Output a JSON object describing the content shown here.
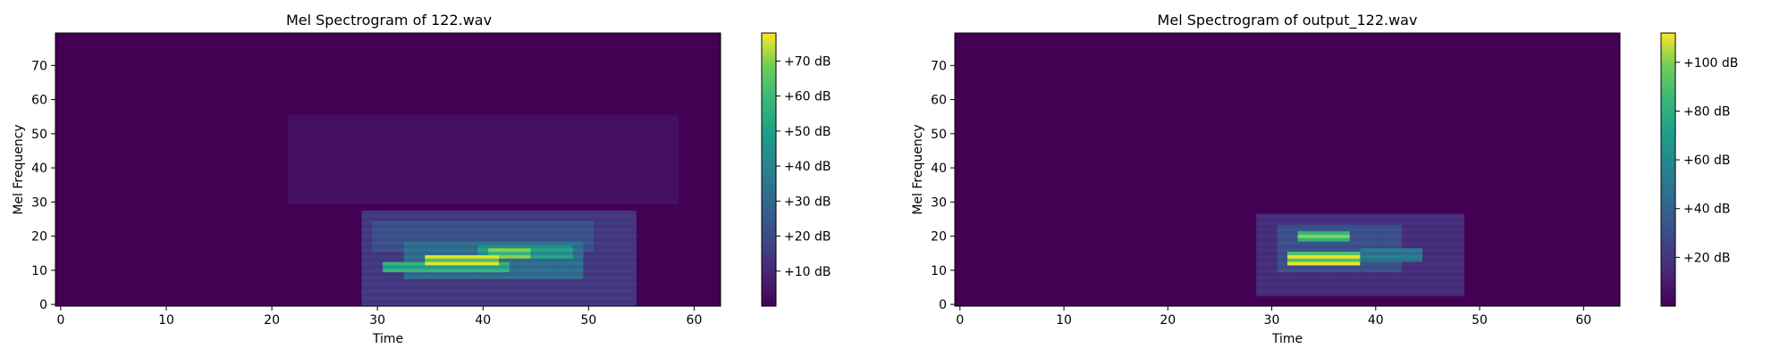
{
  "colors": {
    "viridis_low": "#440154",
    "viridis_mid": "#21918c",
    "viridis_high": "#fde725",
    "axis": "#000000",
    "background": "#ffffff"
  },
  "chart_data": [
    {
      "type": "heatmap",
      "title": "Mel Spectrogram of 122.wav",
      "xlabel": "Time",
      "ylabel": "Mel Frequency",
      "xlim": [
        -0.5,
        62.5
      ],
      "ylim": [
        -0.5,
        79.5
      ],
      "xticks": [
        0,
        10,
        20,
        30,
        40,
        50,
        60
      ],
      "yticks": [
        0,
        10,
        20,
        30,
        40,
        50,
        60,
        70
      ],
      "colorbar": {
        "range": [
          0,
          78
        ],
        "ticks": [
          10,
          20,
          30,
          40,
          50,
          60,
          70
        ],
        "tick_labels": [
          "+10 dB",
          "+20 dB",
          "+30 dB",
          "+40 dB",
          "+50 dB",
          "+60 dB",
          "+70 dB"
        ]
      },
      "energy_regions": [
        {
          "time": [
            29,
            54
          ],
          "mel": [
            0,
            27
          ],
          "level_db": 16
        },
        {
          "time": [
            30,
            50
          ],
          "mel": [
            16,
            24
          ],
          "level_db": 24
        },
        {
          "time": [
            33,
            49
          ],
          "mel": [
            8,
            18
          ],
          "level_db": 34
        },
        {
          "time": [
            31,
            42
          ],
          "mel": [
            10,
            12
          ],
          "level_db": 58
        },
        {
          "time": [
            35,
            41
          ],
          "mel": [
            12,
            14
          ],
          "level_db": 76
        },
        {
          "time": [
            40,
            48
          ],
          "mel": [
            14,
            17
          ],
          "level_db": 52
        },
        {
          "time": [
            41,
            44
          ],
          "mel": [
            14,
            16
          ],
          "level_db": 70
        },
        {
          "time": [
            22,
            58
          ],
          "mel": [
            30,
            55
          ],
          "level_db": 4
        }
      ]
    },
    {
      "type": "heatmap",
      "title": "Mel Spectrogram of output_122.wav",
      "xlabel": "Time",
      "ylabel": "Mel Frequency",
      "xlim": [
        -0.5,
        63.5
      ],
      "ylim": [
        -0.5,
        79.5
      ],
      "xticks": [
        0,
        10,
        20,
        30,
        40,
        50,
        60
      ],
      "yticks": [
        0,
        10,
        20,
        30,
        40,
        50,
        60,
        70
      ],
      "colorbar": {
        "range": [
          0,
          112
        ],
        "ticks": [
          20,
          40,
          60,
          80,
          100
        ],
        "tick_labels": [
          "+20 dB",
          "+40 dB",
          "+60 dB",
          "+80 dB",
          "+100 dB"
        ]
      },
      "energy_regions": [
        {
          "time": [
            29,
            48
          ],
          "mel": [
            3,
            26
          ],
          "level_db": 18
        },
        {
          "time": [
            31,
            42
          ],
          "mel": [
            10,
            23
          ],
          "level_db": 34
        },
        {
          "time": [
            32,
            38
          ],
          "mel": [
            12,
            15
          ],
          "level_db": 110
        },
        {
          "time": [
            33,
            37
          ],
          "mel": [
            19,
            21
          ],
          "level_db": 100
        },
        {
          "time": [
            39,
            44
          ],
          "mel": [
            13,
            16
          ],
          "level_db": 55
        }
      ]
    }
  ]
}
